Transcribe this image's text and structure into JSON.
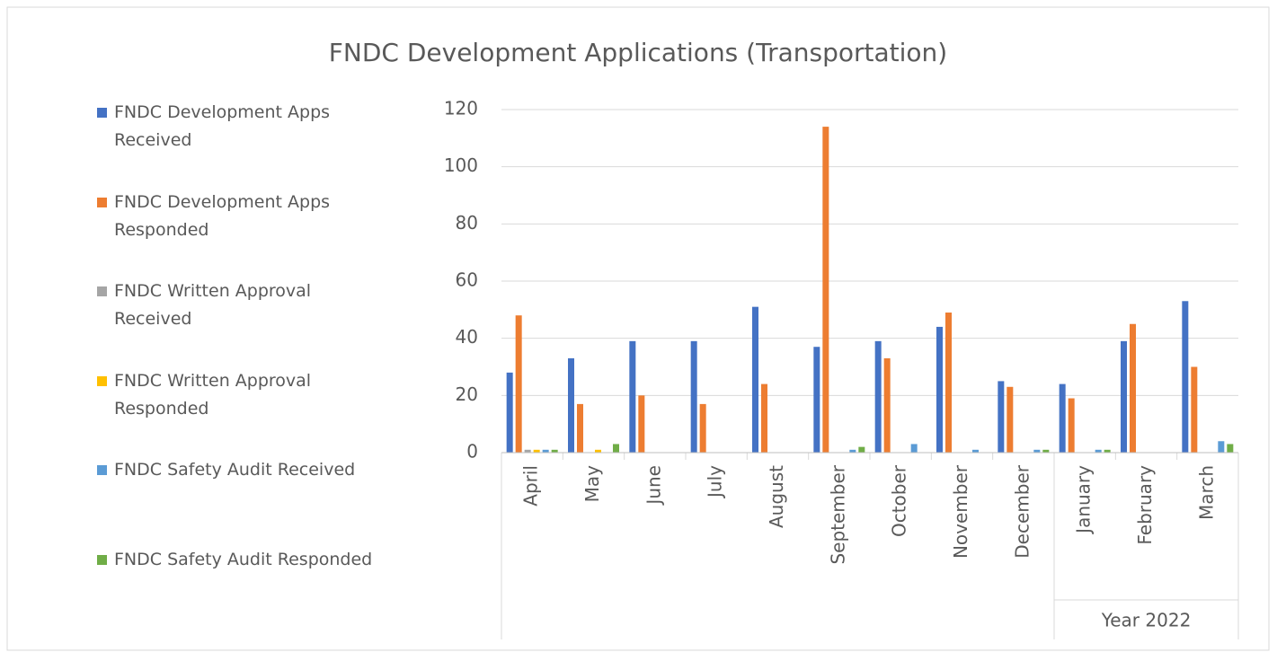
{
  "chart_data": {
    "type": "bar",
    "title": "FNDC Development Applications (Transportation)",
    "categories": [
      "April",
      "May",
      "June",
      "July",
      "August",
      "September",
      "October",
      "November",
      "December",
      "January",
      "February",
      "March"
    ],
    "category_groups": [
      {
        "name": "Year 2022",
        "from": 9,
        "to": 11
      }
    ],
    "series": [
      {
        "name": "FNDC Development Apps Received",
        "color": "#4472c4",
        "values": [
          28,
          33,
          39,
          39,
          51,
          37,
          39,
          44,
          25,
          24,
          39,
          53
        ]
      },
      {
        "name": "FNDC Development Apps Responded",
        "color": "#ed7d31",
        "values": [
          48,
          17,
          20,
          17,
          24,
          114,
          33,
          49,
          23,
          19,
          45,
          30
        ]
      },
      {
        "name": "FNDC Written Approval Received",
        "color": "#a5a5a5",
        "values": [
          1,
          0,
          0,
          0,
          0,
          0,
          0,
          0,
          0,
          0,
          0,
          0
        ]
      },
      {
        "name": "FNDC Written Approval Responded",
        "color": "#ffc000",
        "values": [
          1,
          1,
          0,
          0,
          0,
          0,
          0,
          0,
          0,
          0,
          0,
          0
        ]
      },
      {
        "name": "FNDC Safety Audit Received",
        "color": "#5b9bd5",
        "values": [
          1,
          0,
          0,
          0,
          0,
          1,
          3,
          1,
          1,
          1,
          0,
          4
        ]
      },
      {
        "name": "FNDC Safety Audit Responded",
        "color": "#70ad47",
        "values": [
          1,
          3,
          0,
          0,
          0,
          2,
          0,
          0,
          1,
          1,
          0,
          3
        ]
      }
    ],
    "ylim": [
      0,
      120
    ],
    "yticks": [
      0,
      20,
      40,
      60,
      80,
      100,
      120
    ],
    "grid": true,
    "legend": "left"
  }
}
